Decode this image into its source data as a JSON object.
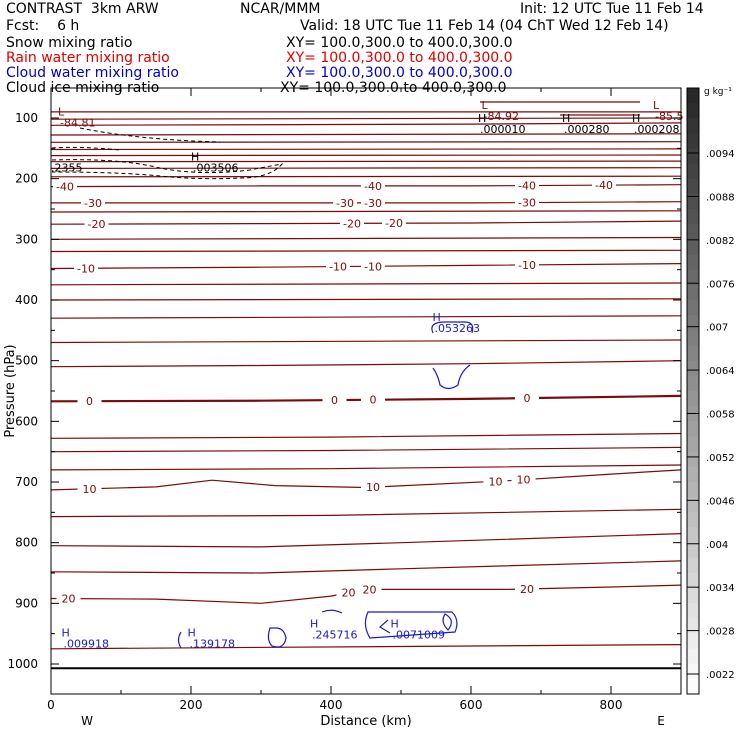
{
  "header": {
    "model": "CONTRAST",
    "config": "3km ARW",
    "org": "NCAR/MMM",
    "init": "Init: 12 UTC Tue 11 Feb 14",
    "fcst_label": "Fcst:",
    "fcst_value": "6 h",
    "valid": "Valid: 18 UTC Tue 11 Feb 14 (04 ChT Wed 12 Feb 14)"
  },
  "legend": [
    {
      "name": "Snow mixing ratio",
      "xy": "XY= 100.0,300.0 to 400.0,300.0",
      "color": "#000000"
    },
    {
      "name": "Rain water mixing ratio",
      "xy": "XY= 100.0,300.0 to 400.0,300.0",
      "color": "#e00000"
    },
    {
      "name": "Cloud water mixing ratio",
      "xy": "XY= 100.0,300.0 to 400.0,300.0",
      "color": "#0000cc"
    },
    {
      "name": "Cloud ice mixing ratio",
      "xy": "XY= 100.0,300.0 to 400.0,300.0",
      "color": "#000000"
    }
  ],
  "colorbar": {
    "unit": "g kg⁻¹",
    "ticks": [
      ".0094",
      ".0088",
      ".0082",
      ".0076",
      ".007",
      ".0064",
      ".0058",
      ".0052",
      ".0046",
      ".004",
      ".0034",
      ".0028",
      ".0022"
    ]
  },
  "chart_data": {
    "type": "contour",
    "xlabel": "Distance (km)",
    "ylabel": "Pressure (hPa)",
    "xlim": [
      0,
      900
    ],
    "ylim": [
      1050,
      65
    ],
    "x_ticks": [
      0,
      200,
      400,
      600,
      800
    ],
    "y_ticks": [
      100,
      200,
      300,
      400,
      500,
      600,
      700,
      800,
      900,
      1000
    ],
    "x_ends": {
      "left": "W",
      "right": "E"
    },
    "isotherm_color": "#7a0b0b",
    "cloud_color": "#1a1acc",
    "temperature_lines": [
      {
        "label": "-40",
        "points": [
          [
            0,
            213
          ],
          [
            300,
            212
          ],
          [
            600,
            212
          ],
          [
            900,
            210
          ]
        ],
        "labels_at": [
          20,
          460,
          680,
          790
        ]
      },
      {
        "label": "-30",
        "points": [
          [
            0,
            240
          ],
          [
            300,
            240
          ],
          [
            600,
            240
          ],
          [
            900,
            238
          ]
        ],
        "labels_at": [
          60,
          420,
          460,
          680
        ]
      },
      {
        "label": "-20",
        "points": [
          [
            0,
            275
          ],
          [
            300,
            274
          ],
          [
            600,
            273
          ],
          [
            900,
            270
          ]
        ],
        "labels_at": [
          65,
          430,
          490
        ]
      },
      {
        "label": "-10",
        "points": [
          [
            0,
            348
          ],
          [
            300,
            346
          ],
          [
            600,
            343
          ],
          [
            900,
            340
          ]
        ],
        "labels_at": [
          50,
          410,
          460,
          680
        ]
      },
      {
        "label": "0",
        "points": [
          [
            0,
            567
          ],
          [
            300,
            566
          ],
          [
            600,
            563
          ],
          [
            900,
            558
          ]
        ],
        "labels_at": [
          55,
          405,
          460,
          680
        ]
      },
      {
        "label": "10",
        "points": [
          [
            0,
            713
          ],
          [
            150,
            708
          ],
          [
            230,
            697
          ],
          [
            320,
            706
          ],
          [
            450,
            709
          ],
          [
            650,
            698
          ],
          [
            800,
            687
          ],
          [
            900,
            680
          ]
        ],
        "labels_at": [
          55,
          460,
          635,
          675
        ]
      },
      {
        "label": "20",
        "points": [
          [
            0,
            892
          ],
          [
            150,
            893
          ],
          [
            300,
            900
          ],
          [
            400,
            888
          ],
          [
            450,
            877
          ],
          [
            650,
            877
          ],
          [
            800,
            873
          ],
          [
            900,
            870
          ]
        ],
        "labels_at": [
          25,
          425,
          455,
          680
        ]
      }
    ],
    "temperature_lines_unlabeled": [
      [
        [
          0,
          90
        ],
        [
          900,
          90
        ]
      ],
      [
        [
          0,
          102
        ],
        [
          900,
          100
        ]
      ],
      [
        [
          0,
          112
        ],
        [
          600,
          110
        ],
        [
          900,
          108
        ]
      ],
      [
        [
          0,
          128
        ],
        [
          900,
          126
        ]
      ],
      [
        [
          0,
          140
        ],
        [
          900,
          139
        ]
      ],
      [
        [
          0,
          152
        ],
        [
          900,
          151
        ]
      ],
      [
        [
          0,
          162
        ],
        [
          900,
          161
        ]
      ],
      [
        [
          0,
          172
        ],
        [
          900,
          171
        ]
      ],
      [
        [
          0,
          183
        ],
        [
          900,
          182
        ]
      ],
      [
        [
          0,
          197
        ],
        [
          900,
          196
        ]
      ],
      [
        [
          0,
          255
        ],
        [
          900,
          253
        ]
      ],
      [
        [
          0,
          300
        ],
        [
          900,
          297
        ]
      ],
      [
        [
          0,
          320
        ],
        [
          900,
          318
        ]
      ],
      [
        [
          0,
          375
        ],
        [
          900,
          372
        ]
      ],
      [
        [
          0,
          400
        ],
        [
          900,
          398
        ]
      ],
      [
        [
          0,
          430
        ],
        [
          900,
          426
        ]
      ],
      [
        [
          0,
          470
        ],
        [
          900,
          466
        ]
      ],
      [
        [
          0,
          510
        ],
        [
          300,
          508
        ],
        [
          600,
          505
        ],
        [
          900,
          500
        ]
      ],
      [
        [
          0,
          628
        ],
        [
          400,
          626
        ],
        [
          900,
          620
        ]
      ],
      [
        [
          0,
          650
        ],
        [
          400,
          648
        ],
        [
          900,
          643
        ]
      ],
      [
        [
          0,
          680
        ],
        [
          400,
          678
        ],
        [
          900,
          672
        ]
      ],
      [
        [
          0,
          757
        ],
        [
          400,
          755
        ],
        [
          900,
          745
        ]
      ],
      [
        [
          0,
          805
        ],
        [
          300,
          807
        ],
        [
          500,
          800
        ],
        [
          900,
          785
        ]
      ],
      [
        [
          0,
          848
        ],
        [
          300,
          850
        ],
        [
          500,
          843
        ],
        [
          900,
          830
        ]
      ],
      [
        [
          0,
          975
        ],
        [
          900,
          968
        ]
      ]
    ],
    "highs_lows": [
      {
        "kind": "L",
        "x": 10,
        "p": 96,
        "value": "-84.81",
        "color": "#7a0b0b"
      },
      {
        "kind": "L",
        "x": 615,
        "p": 85,
        "value": "-84.92",
        "color": "#7a0b0b"
      },
      {
        "kind": "L",
        "x": 860,
        "p": 85,
        "value": "-85.5",
        "color": "#7a0b0b"
      },
      {
        "kind": "H",
        "x": 610,
        "p": 107,
        "value": ".000010",
        "color": "#000000"
      },
      {
        "kind": "H",
        "x": 730,
        "p": 107,
        "value": ".000280",
        "color": "#000000"
      },
      {
        "kind": "H",
        "x": 830,
        "p": 107,
        "value": ".000208",
        "color": "#000000"
      },
      {
        "kind": "H",
        "x": 200,
        "p": 170,
        "value": ".003506",
        "color": "#000000"
      },
      {
        "kind": "",
        "x": 0,
        "p": 170,
        "value": ".2355",
        "color": "#000000"
      },
      {
        "kind": "H",
        "x": 545,
        "p": 435,
        "value": ".053263",
        "color": "#1a1acc"
      },
      {
        "kind": "H",
        "x": 15,
        "p": 955,
        "value": ".009918",
        "color": "#1a1acc"
      },
      {
        "kind": "H",
        "x": 195,
        "p": 955,
        "value": ".139178",
        "color": "#1a1acc"
      },
      {
        "kind": "H",
        "x": 370,
        "p": 940,
        "value": ".245716",
        "color": "#1a1acc"
      },
      {
        "kind": "H",
        "x": 485,
        "p": 940,
        "value": ".0071009",
        "color": "#1a1acc"
      }
    ]
  }
}
